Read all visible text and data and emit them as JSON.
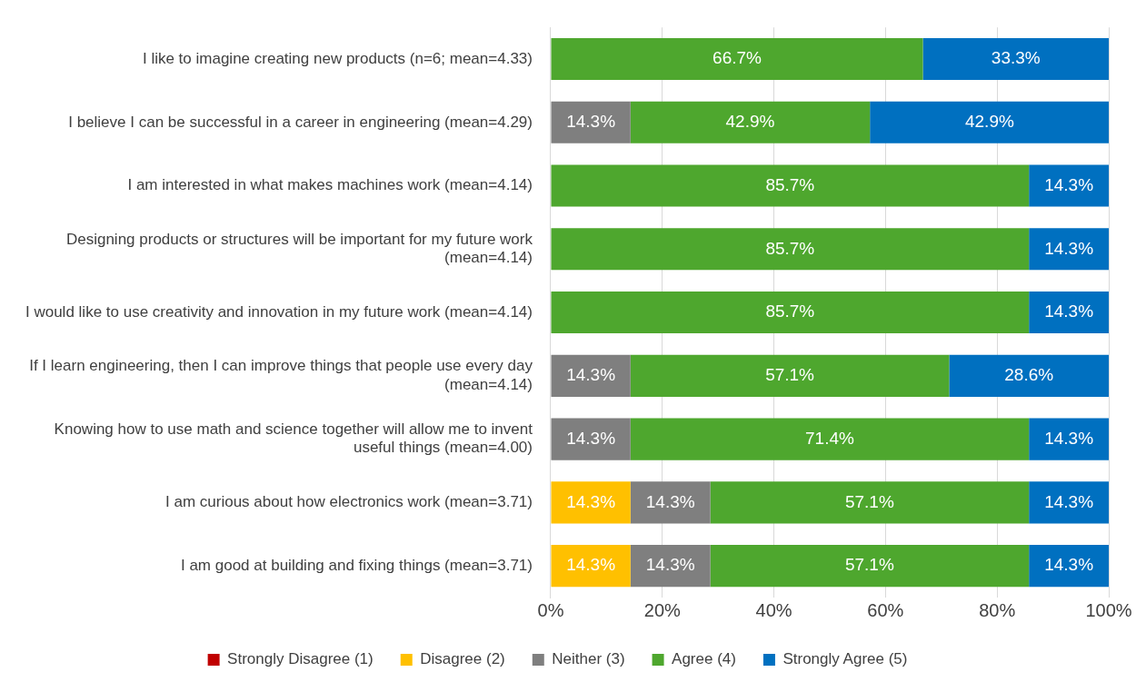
{
  "chart_data": {
    "type": "bar",
    "orientation": "horizontal",
    "stacked": true,
    "categories": [
      "I like to imagine creating new products (n=6; mean=4.33)",
      "I believe I can be successful in a career in engineering (mean=4.29)",
      "I am interested in what makes machines work (mean=4.14)",
      "Designing products or structures will be important for my future work (mean=4.14)",
      "I would like to use creativity and innovation in my future work (mean=4.14)",
      "If I learn engineering, then I can improve things that people use every day (mean=4.14)",
      "Knowing how to use math and science together will allow me to invent useful things (mean=4.00)",
      "I am curious about how electronics work (mean=3.71)",
      "I am good at building and fixing things (mean=3.71)"
    ],
    "series": [
      {
        "name": "Strongly Disagree (1)",
        "color": "#c00000",
        "values": [
          0,
          0,
          0,
          0,
          0,
          0,
          0,
          0,
          0
        ],
        "value_labels": [
          null,
          null,
          null,
          null,
          null,
          null,
          null,
          null,
          null
        ]
      },
      {
        "name": "Disagree (2)",
        "color": "#ffc000",
        "values": [
          0,
          0,
          0,
          0,
          0,
          0,
          0,
          14.3,
          14.3
        ],
        "value_labels": [
          null,
          null,
          null,
          null,
          null,
          null,
          null,
          "14.3%",
          "14.3%"
        ]
      },
      {
        "name": "Neither (3)",
        "color": "#7f7f7f",
        "values": [
          0,
          14.3,
          0,
          0,
          0,
          14.3,
          14.3,
          14.3,
          14.3
        ],
        "value_labels": [
          null,
          "14.3%",
          null,
          null,
          null,
          "14.3%",
          "14.3%",
          "14.3%",
          "14.3%"
        ]
      },
      {
        "name": "Agree (4)",
        "color": "#4ea72e",
        "values": [
          66.7,
          42.9,
          85.7,
          85.7,
          85.7,
          57.1,
          71.4,
          57.1,
          57.1
        ],
        "value_labels": [
          "66.7%",
          "42.9%",
          "85.7%",
          "85.7%",
          "85.7%",
          "57.1%",
          "71.4%",
          "57.1%",
          "57.1%"
        ]
      },
      {
        "name": "Strongly Agree (5)",
        "color": "#0070c0",
        "values": [
          33.3,
          42.9,
          14.3,
          14.3,
          14.3,
          28.6,
          14.3,
          14.3,
          14.3
        ],
        "value_labels": [
          "33.3%",
          "42.9%",
          "14.3%",
          "14.3%",
          "14.3%",
          "28.6%",
          "14.3%",
          "14.3%",
          "14.3%"
        ]
      }
    ],
    "xlim": [
      0,
      100
    ],
    "xticks": [
      {
        "value": 0,
        "label": "0%"
      },
      {
        "value": 20,
        "label": "20%"
      },
      {
        "value": 40,
        "label": "40%"
      },
      {
        "value": 60,
        "label": "60%"
      },
      {
        "value": 80,
        "label": "80%"
      },
      {
        "value": 100,
        "label": "100%"
      }
    ],
    "grid": "x",
    "legend": "bottom"
  }
}
